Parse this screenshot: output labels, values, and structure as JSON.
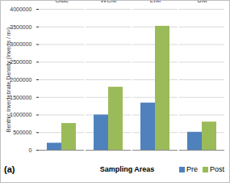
{
  "chart_data": {
    "type": "bar",
    "y_label": "Benthic Invertebrate Density (Inverts / m²)",
    "x_label": "Sampling Areas",
    "annotation": "(a)",
    "categories": [
      "Giac",
      "WCM",
      "LIM",
      "UM"
    ],
    "series": [
      {
        "name": "Pre",
        "color": "#4f81bd",
        "values": [
          200000,
          1000000,
          1340000,
          510000
        ]
      },
      {
        "name": "Post",
        "color": "#9bbb59",
        "values": [
          760000,
          1790000,
          3520000,
          800000
        ]
      }
    ],
    "ylim": [
      0,
      4000000
    ],
    "yticks": [
      0,
      500000,
      1000000,
      1500000,
      2000000,
      2500000,
      3000000,
      3500000,
      4000000
    ],
    "grid": true,
    "legend": "bottom-right"
  }
}
